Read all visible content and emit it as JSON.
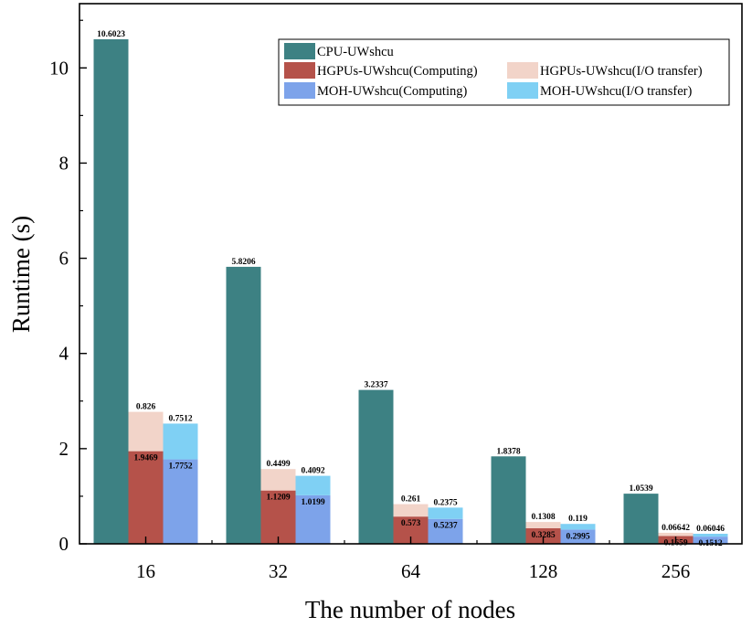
{
  "chart_data": {
    "type": "bar",
    "xlabel": "The number of nodes",
    "ylabel": "Runtime (s)",
    "ylim": [
      0,
      11.35
    ],
    "yticks": [
      0,
      2,
      4,
      6,
      8,
      10
    ],
    "categories": [
      "16",
      "32",
      "64",
      "128",
      "256"
    ],
    "legend": {
      "position": "top-right",
      "columns": 2,
      "entries": [
        {
          "label": "CPU-UWshcu",
          "color": "#3d8183"
        },
        {
          "label": "HGPUs-UWshcu(Computing)",
          "color": "#b5524a"
        },
        {
          "label": "HGPUs-UWshcu(I/O transfer)",
          "color": "#f2d4c9"
        },
        {
          "label": "MOH-UWshcu(Computing)",
          "color": "#7da3ea"
        },
        {
          "label": "MOH-UWshcu(I/O transfer)",
          "color": "#7fd0f4"
        }
      ]
    },
    "bars": [
      {
        "name": "CPU-UWshcu",
        "segments": [
          {
            "name": "total",
            "color": "#3d8183",
            "values": [
              10.6023,
              5.8206,
              3.2337,
              1.8378,
              1.0539
            ],
            "labels": [
              "10.6023",
              "5.8206",
              "3.2337",
              "1.8378",
              "1.0539"
            ]
          }
        ]
      },
      {
        "name": "HGPUs-UWshcu",
        "segments": [
          {
            "name": "Computing",
            "color": "#b5524a",
            "values": [
              1.9469,
              1.1209,
              0.573,
              0.3285,
              0.1659
            ],
            "labels": [
              "1.9469",
              "1.1209",
              "0.573",
              "0.3285",
              "0.1659"
            ]
          },
          {
            "name": "I/O transfer",
            "color": "#f2d4c9",
            "values": [
              0.826,
              0.4499,
              0.261,
              0.1308,
              0.06642
            ],
            "labels": [
              "0.826",
              "0.4499",
              "0.261",
              "0.1308",
              "0.06642"
            ]
          }
        ]
      },
      {
        "name": "MOH-UWshcu",
        "segments": [
          {
            "name": "Computing",
            "color": "#7da3ea",
            "values": [
              1.7752,
              1.0199,
              0.5237,
              0.2995,
              0.1512
            ],
            "labels": [
              "1.7752",
              "1.0199",
              "0.5237",
              "0.2995",
              "0.1512"
            ]
          },
          {
            "name": "I/O transfer",
            "color": "#7fd0f4",
            "values": [
              0.7512,
              0.4092,
              0.2375,
              0.119,
              0.06046
            ],
            "labels": [
              "0.7512",
              "0.4092",
              "0.2375",
              "0.119",
              "0.06046"
            ]
          }
        ]
      }
    ]
  }
}
